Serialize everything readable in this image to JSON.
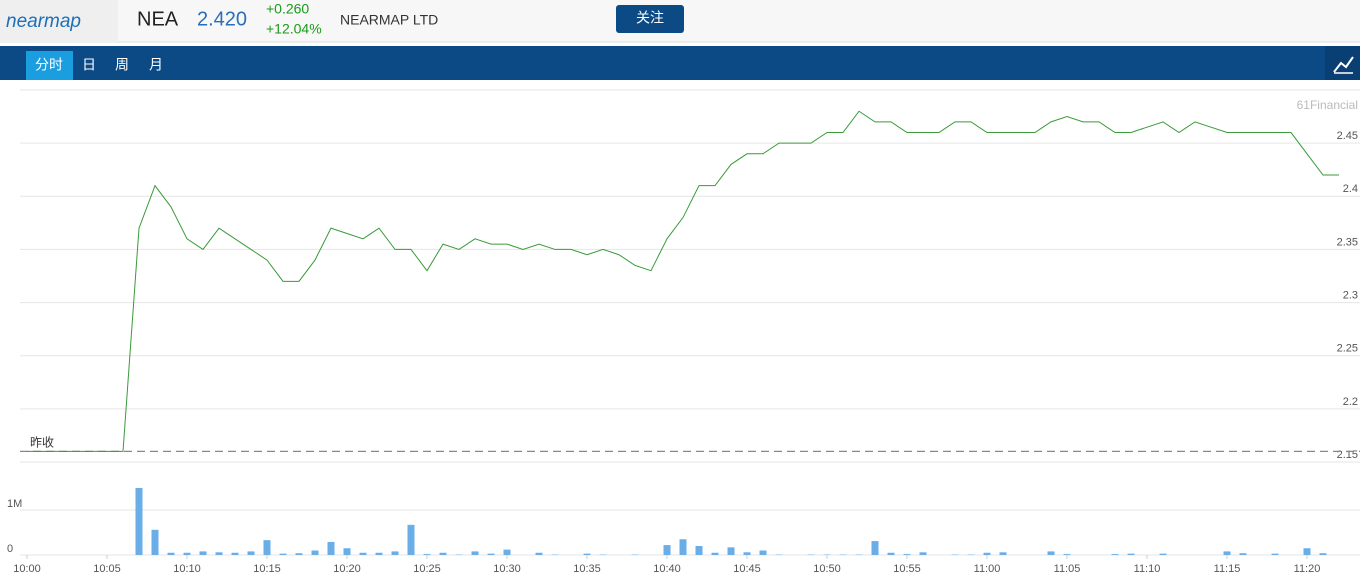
{
  "header": {
    "logo": "nearmap",
    "code": "NEA",
    "price": "2.420",
    "change": "+0.260",
    "change_pct": "+12.04%",
    "name": "NEARMAP LTD",
    "follow_button": "关注"
  },
  "tabs": [
    "分时",
    "日",
    "周",
    "月"
  ],
  "watermark": "61Financial",
  "chart_data": [
    {
      "type": "line",
      "color": "#3a9a3a",
      "grid": true,
      "prev_close": 2.16,
      "prev_close_label": "昨收",
      "x": [
        0,
        1,
        2,
        3,
        4,
        5,
        6,
        7,
        8,
        9,
        10,
        11,
        12,
        13,
        14,
        15,
        16,
        17,
        18,
        19,
        20,
        21,
        22,
        23,
        24,
        25,
        26,
        27,
        28,
        29,
        30,
        31,
        32,
        33,
        34,
        35,
        36,
        37,
        38,
        39,
        40,
        41,
        42,
        43,
        44,
        45,
        46,
        47,
        48,
        49,
        50,
        51,
        52,
        53,
        54,
        55,
        56,
        57,
        58,
        59,
        60,
        61,
        62,
        63,
        64,
        65,
        66,
        67,
        68,
        69,
        70,
        71,
        72,
        73,
        74,
        75,
        76,
        77,
        78,
        79,
        80,
        81,
        82
      ],
      "values": [
        2.16,
        2.16,
        2.16,
        2.16,
        2.16,
        2.16,
        2.16,
        2.37,
        2.41,
        2.39,
        2.36,
        2.35,
        2.37,
        2.36,
        2.35,
        2.34,
        2.32,
        2.32,
        2.34,
        2.37,
        2.365,
        2.36,
        2.37,
        2.35,
        2.35,
        2.33,
        2.355,
        2.35,
        2.36,
        2.355,
        2.355,
        2.35,
        2.355,
        2.35,
        2.35,
        2.345,
        2.35,
        2.345,
        2.335,
        2.33,
        2.36,
        2.38,
        2.41,
        2.41,
        2.43,
        2.44,
        2.44,
        2.45,
        2.45,
        2.45,
        2.46,
        2.46,
        2.48,
        2.47,
        2.47,
        2.46,
        2.46,
        2.46,
        2.47,
        2.47,
        2.46,
        2.46,
        2.46,
        2.46,
        2.47,
        2.475,
        2.47,
        2.47,
        2.46,
        2.46,
        2.465,
        2.47,
        2.46,
        2.47,
        2.465,
        2.46,
        2.46,
        2.46,
        2.46,
        2.46,
        2.44,
        2.42,
        2.42
      ],
      "xlim": [
        -0.4375,
        83.3125
      ],
      "ylim": [
        2.15,
        2.5
      ],
      "yticks": [
        2.15,
        2.2,
        2.25,
        2.3,
        2.35,
        2.4,
        2.45
      ]
    },
    {
      "type": "bar",
      "color": "#6aaee8",
      "grid": true,
      "x": [
        0,
        1,
        2,
        3,
        4,
        5,
        6,
        7,
        8,
        9,
        10,
        11,
        12,
        13,
        14,
        15,
        16,
        17,
        18,
        19,
        20,
        21,
        22,
        23,
        24,
        25,
        26,
        27,
        28,
        29,
        30,
        31,
        32,
        33,
        34,
        35,
        36,
        37,
        38,
        39,
        40,
        41,
        42,
        43,
        44,
        45,
        46,
        47,
        48,
        49,
        50,
        51,
        52,
        53,
        54,
        55,
        56,
        57,
        58,
        59,
        60,
        61,
        62,
        63,
        64,
        65,
        66,
        67,
        68,
        69,
        70,
        71,
        72,
        73,
        74,
        75,
        76,
        77,
        78,
        79,
        80,
        81,
        82
      ],
      "values": [
        0,
        0,
        0,
        0,
        0,
        0,
        0,
        1490000,
        560000,
        50000,
        50000,
        80000,
        60000,
        50000,
        80000,
        330000,
        30000,
        40000,
        100000,
        290000,
        150000,
        50000,
        50000,
        80000,
        670000,
        20000,
        50000,
        10000,
        80000,
        30000,
        120000,
        0,
        50000,
        10000,
        0,
        30000,
        10000,
        0,
        10000,
        0,
        220000,
        350000,
        200000,
        50000,
        170000,
        60000,
        100000,
        10000,
        0,
        10000,
        10000,
        10000,
        10000,
        310000,
        50000,
        20000,
        60000,
        0,
        10000,
        10000,
        50000,
        60000,
        0,
        0,
        80000,
        20000,
        0,
        0,
        20000,
        30000,
        0,
        30000,
        0,
        0,
        0,
        80000,
        40000,
        0,
        30000,
        0,
        150000,
        40000,
        0
      ],
      "xlim": [
        -0.4375,
        83.3125
      ],
      "ylim": [
        0,
        2000000
      ],
      "yticks": [
        0,
        {
          "value": 1000000,
          "label": "1M"
        }
      ],
      "xticks": [
        {
          "value": 0,
          "label": "10:00"
        },
        {
          "value": 5,
          "label": "10:05"
        },
        {
          "value": 10,
          "label": "10:10"
        },
        {
          "value": 15,
          "label": "10:15"
        },
        {
          "value": 20,
          "label": "10:20"
        },
        {
          "value": 25,
          "label": "10:25"
        },
        {
          "value": 30,
          "label": "10:30"
        },
        {
          "value": 35,
          "label": "10:35"
        },
        {
          "value": 40,
          "label": "10:40"
        },
        {
          "value": 45,
          "label": "10:45"
        },
        {
          "value": 50,
          "label": "10:50"
        },
        {
          "value": 55,
          "label": "10:55"
        },
        {
          "value": 60,
          "label": "11:00"
        },
        {
          "value": 65,
          "label": "11:05"
        },
        {
          "value": 70,
          "label": "11:10"
        },
        {
          "value": 75,
          "label": "11:15"
        },
        {
          "value": 80,
          "label": "11:20"
        }
      ]
    }
  ]
}
